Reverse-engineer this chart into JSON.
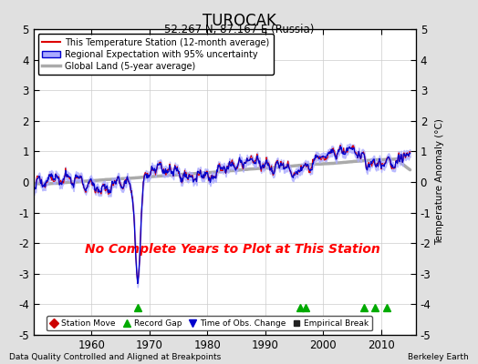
{
  "title": "TUROCAK",
  "subtitle": "52.267 N, 87.167 E (Russia)",
  "xlabel_left": "Data Quality Controlled and Aligned at Breakpoints",
  "xlabel_right": "Berkeley Earth",
  "ylabel": "Temperature Anomaly (°C)",
  "ylim": [
    -5,
    5
  ],
  "xlim": [
    1950,
    2016
  ],
  "xticks": [
    1960,
    1970,
    1980,
    1990,
    2000,
    2010
  ],
  "yticks": [
    -4,
    -3,
    -2,
    -1,
    0,
    1,
    2,
    3,
    4
  ],
  "yticks_border": [
    -5,
    5
  ],
  "background_color": "#e0e0e0",
  "plot_bg_color": "#ffffff",
  "station_line_color": "#dd0000",
  "regional_line_color": "#0000cc",
  "regional_fill_color": "#aaaaff",
  "global_line_color": "#aaaaaa",
  "no_data_text": "No Complete Years to Plot at This Station",
  "no_data_color": "#ff0000",
  "legend_entries": [
    "This Temperature Station (12-month average)",
    "Regional Expectation with 95% uncertainty",
    "Global Land (5-year average)"
  ],
  "marker_events": {
    "record_gap_years": [
      1968,
      1996,
      1997,
      2007,
      2009,
      2011
    ],
    "station_move_years": [],
    "obs_change_years": [],
    "empirical_break_years": []
  }
}
